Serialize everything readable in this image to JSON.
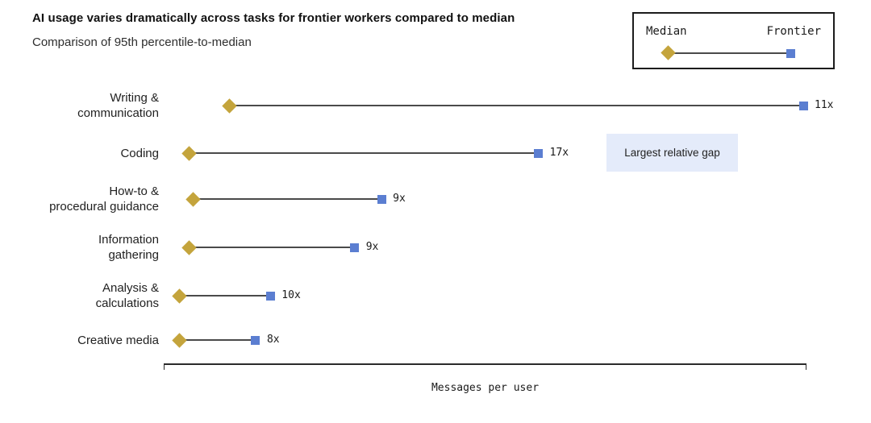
{
  "header": {
    "title": "AI usage varies dramatically across tasks for frontier workers compared to median",
    "subtitle": "Comparison of 95th percentile-to-median"
  },
  "legend": {
    "median_label": "Median",
    "frontier_label": "Frontier"
  },
  "annotation": {
    "text": "Largest relative gap"
  },
  "colors": {
    "median_marker": "#c4a43c",
    "frontier_marker": "#5b7ed1",
    "connector": "#4a4a4a",
    "annotation_bg": "#e4ebfa",
    "axis": "#2b2b2b"
  },
  "chart_data": {
    "type": "dumbbell",
    "title": "AI usage varies dramatically across tasks for frontier workers compared to median",
    "subtitle": "Comparison of 95th percentile-to-median",
    "xlabel": "Messages per user",
    "x_axis": {
      "numeric_ticks_visible": false,
      "note": "median_pos and frontier_pos are fractions (0-1) along the unlabeled 'Messages per user' axis, estimated from pixel positions"
    },
    "legend_entries": [
      "Median",
      "Frontier"
    ],
    "categories": [
      "Writing & communication",
      "Coding",
      "How-to & procedural guidance",
      "Information gathering",
      "Analysis & calculations",
      "Creative media"
    ],
    "rows": [
      {
        "label_lines": [
          "Writing &",
          "communication"
        ],
        "median_pos": 0.102,
        "frontier_pos": 0.995,
        "multiplier": "11x"
      },
      {
        "label_lines": [
          "Coding"
        ],
        "median_pos": 0.04,
        "frontier_pos": 0.583,
        "multiplier": "17x",
        "annotation": "Largest relative gap"
      },
      {
        "label_lines": [
          "How-to &",
          "procedural guidance"
        ],
        "median_pos": 0.046,
        "frontier_pos": 0.339,
        "multiplier": "9x"
      },
      {
        "label_lines": [
          "Information",
          "gathering"
        ],
        "median_pos": 0.04,
        "frontier_pos": 0.297,
        "multiplier": "9x"
      },
      {
        "label_lines": [
          "Analysis &",
          "calculations"
        ],
        "median_pos": 0.025,
        "frontier_pos": 0.166,
        "multiplier": "10x"
      },
      {
        "label_lines": [
          "Creative media"
        ],
        "median_pos": 0.024,
        "frontier_pos": 0.143,
        "multiplier": "8x"
      }
    ]
  }
}
